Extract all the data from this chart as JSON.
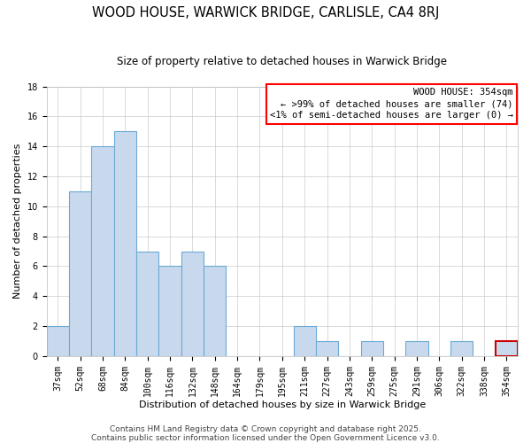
{
  "title": "WOOD HOUSE, WARWICK BRIDGE, CARLISLE, CA4 8RJ",
  "subtitle": "Size of property relative to detached houses in Warwick Bridge",
  "xlabel": "Distribution of detached houses by size in Warwick Bridge",
  "ylabel": "Number of detached properties",
  "categories": [
    "37sqm",
    "52sqm",
    "68sqm",
    "84sqm",
    "100sqm",
    "116sqm",
    "132sqm",
    "148sqm",
    "164sqm",
    "179sqm",
    "195sqm",
    "211sqm",
    "227sqm",
    "243sqm",
    "259sqm",
    "275sqm",
    "291sqm",
    "306sqm",
    "322sqm",
    "338sqm",
    "354sqm"
  ],
  "values": [
    2,
    11,
    14,
    15,
    7,
    6,
    7,
    6,
    0,
    0,
    0,
    2,
    1,
    0,
    1,
    0,
    1,
    0,
    1,
    0,
    1
  ],
  "bar_color": "#c8d9ee",
  "bar_edge_color": "#6aaad4",
  "highlight_bar_index": 20,
  "highlight_bar_edge_color": "#cc0000",
  "box_color": "#cc0000",
  "ylim": [
    0,
    18
  ],
  "yticks": [
    0,
    2,
    4,
    6,
    8,
    10,
    12,
    14,
    16,
    18
  ],
  "legend_title": "WOOD HOUSE: 354sqm",
  "legend_line1": "← >99% of detached houses are smaller (74)",
  "legend_line2": "<1% of semi-detached houses are larger (0) →",
  "footer_line1": "Contains HM Land Registry data © Crown copyright and database right 2025.",
  "footer_line2": "Contains public sector information licensed under the Open Government Licence v3.0.",
  "background_color": "#ffffff",
  "grid_color": "#cccccc",
  "title_fontsize": 10.5,
  "subtitle_fontsize": 8.5,
  "axis_label_fontsize": 8,
  "tick_fontsize": 7,
  "legend_fontsize": 7.5,
  "footer_fontsize": 6.5
}
